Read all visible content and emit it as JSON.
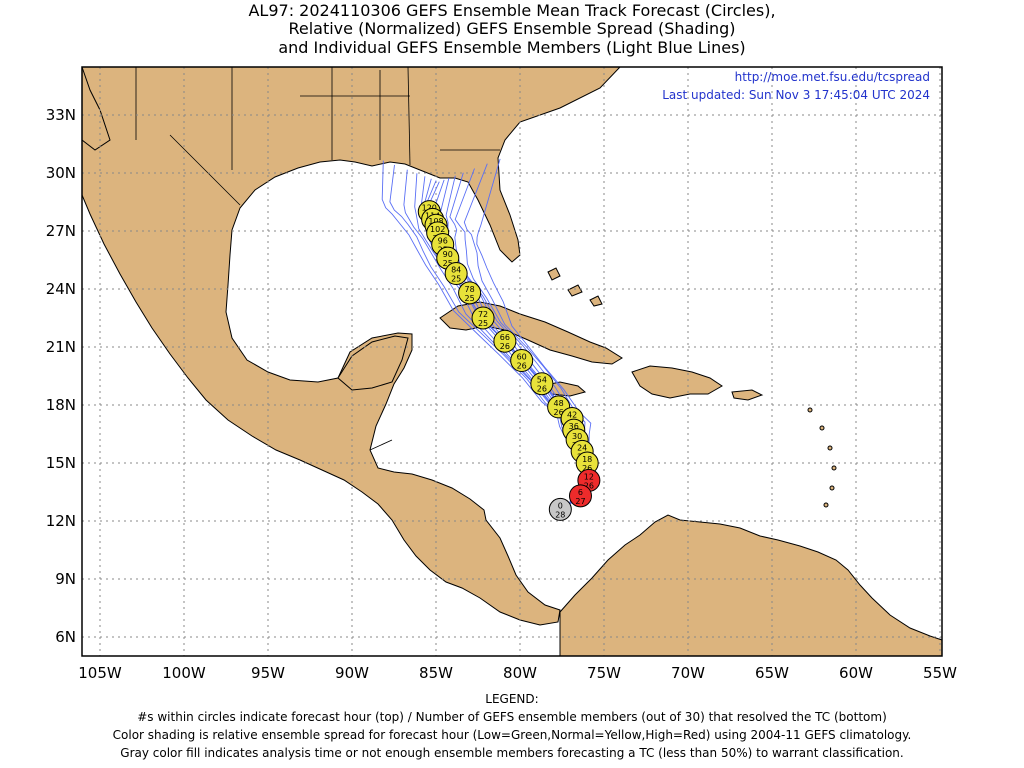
{
  "title": {
    "line1": "AL97: 2024110306 GEFS Ensemble Mean Track Forecast (Circles),",
    "line2": "Relative (Normalized) GEFS Ensemble Spread (Shading)",
    "line3": "and Individual GEFS Ensemble Members (Light Blue Lines)"
  },
  "header_right": {
    "url": "http://moe.met.fsu.edu/tcspread",
    "updated": "Last updated: Sun Nov 3 17:45:04 UTC 2024"
  },
  "axes": {
    "lon_labels": [
      "105W",
      "100W",
      "95W",
      "90W",
      "85W",
      "80W",
      "75W",
      "70W",
      "65W",
      "60W",
      "55W"
    ],
    "lat_labels": [
      "33N",
      "30N",
      "27N",
      "24N",
      "21N",
      "18N",
      "15N",
      "12N",
      "9N",
      "6N"
    ]
  },
  "colors": {
    "land": "#dcb47e",
    "ocean": "#ffffff",
    "track": "#5a6ff5",
    "normal": "#e8e23a",
    "high": "#ee2b2b",
    "gray": "#c8c8c8",
    "text_blue": "#2233cc"
  },
  "track_points": [
    {
      "hour": "0",
      "members": "28",
      "lon": -77.6,
      "lat": 12.6,
      "class": "gray"
    },
    {
      "hour": "6",
      "members": "27",
      "lon": -76.4,
      "lat": 13.3,
      "class": "high"
    },
    {
      "hour": "12",
      "members": "26",
      "lon": -75.9,
      "lat": 14.1,
      "class": "high"
    },
    {
      "hour": "18",
      "members": "26",
      "lon": -76.0,
      "lat": 15.0,
      "class": "normal"
    },
    {
      "hour": "24",
      "members": "26",
      "lon": -76.3,
      "lat": 15.6,
      "class": "normal"
    },
    {
      "hour": "30",
      "members": "26",
      "lon": -76.6,
      "lat": 16.2,
      "class": "normal"
    },
    {
      "hour": "36",
      "members": "26",
      "lon": -76.8,
      "lat": 16.7,
      "class": "normal"
    },
    {
      "hour": "42",
      "members": "26",
      "lon": -76.9,
      "lat": 17.3,
      "class": "normal"
    },
    {
      "hour": "48",
      "members": "26",
      "lon": -77.7,
      "lat": 17.9,
      "class": "normal"
    },
    {
      "hour": "54",
      "members": "26",
      "lon": -78.7,
      "lat": 19.1,
      "class": "normal"
    },
    {
      "hour": "60",
      "members": "26",
      "lon": -79.9,
      "lat": 20.3,
      "class": "normal"
    },
    {
      "hour": "66",
      "members": "26",
      "lon": -80.9,
      "lat": 21.3,
      "class": "normal"
    },
    {
      "hour": "72",
      "members": "25",
      "lon": -82.2,
      "lat": 22.5,
      "class": "normal"
    },
    {
      "hour": "78",
      "members": "25",
      "lon": -83.0,
      "lat": 23.8,
      "class": "normal"
    },
    {
      "hour": "84",
      "members": "25",
      "lon": -83.8,
      "lat": 24.8,
      "class": "normal"
    },
    {
      "hour": "90",
      "members": "25",
      "lon": -84.3,
      "lat": 25.6,
      "class": "normal"
    },
    {
      "hour": "96",
      "members": "25",
      "lon": -84.6,
      "lat": 26.3,
      "class": "normal"
    },
    {
      "hour": "102",
      "members": "25",
      "lon": -84.9,
      "lat": 26.9,
      "class": "normal"
    },
    {
      "hour": "108",
      "members": "25",
      "lon": -85.0,
      "lat": 27.3,
      "class": "normal"
    },
    {
      "hour": "114",
      "members": "25",
      "lon": -85.2,
      "lat": 27.6,
      "class": "normal"
    },
    {
      "hour": "120",
      "members": "25",
      "lon": -85.4,
      "lat": 28.0,
      "class": "normal"
    }
  ],
  "legend": {
    "heading": "LEGEND:",
    "line1": "#s within circles indicate forecast hour (top) / Number of GEFS ensemble members (out of 30) that resolved the TC (bottom)",
    "line2": "Color shading is relative ensemble spread for forecast hour (Low=Green,Normal=Yellow,High=Red) using 2004-11 GEFS climatology.",
    "line3": "Gray color fill indicates analysis time or not enough ensemble members forecasting a TC (less than 50%) to warrant classification."
  }
}
